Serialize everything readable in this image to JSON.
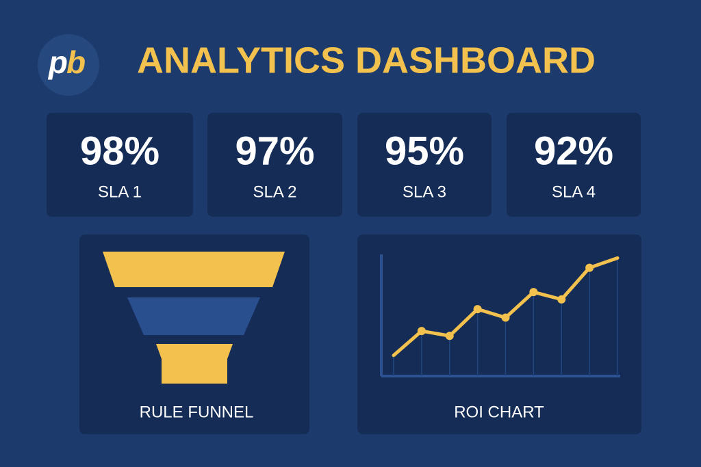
{
  "header": {
    "logo": {
      "left": "p",
      "right": "b"
    },
    "title": "ANALYTICS DASHBOARD"
  },
  "kpis": [
    {
      "value": "98%",
      "label": "SLA 1"
    },
    {
      "value": "97%",
      "label": "SLA 2"
    },
    {
      "value": "95%",
      "label": "SLA 3"
    },
    {
      "value": "92%",
      "label": "SLA 4"
    }
  ],
  "funnel": {
    "title": "RULE FUNNEL"
  },
  "roi_chart": {
    "type": "line",
    "title": "ROI CHART",
    "values": [
      17,
      37,
      33,
      55,
      48,
      69,
      63,
      89,
      97
    ],
    "ylim": [
      0,
      100
    ],
    "color": "#f2c14e"
  }
}
